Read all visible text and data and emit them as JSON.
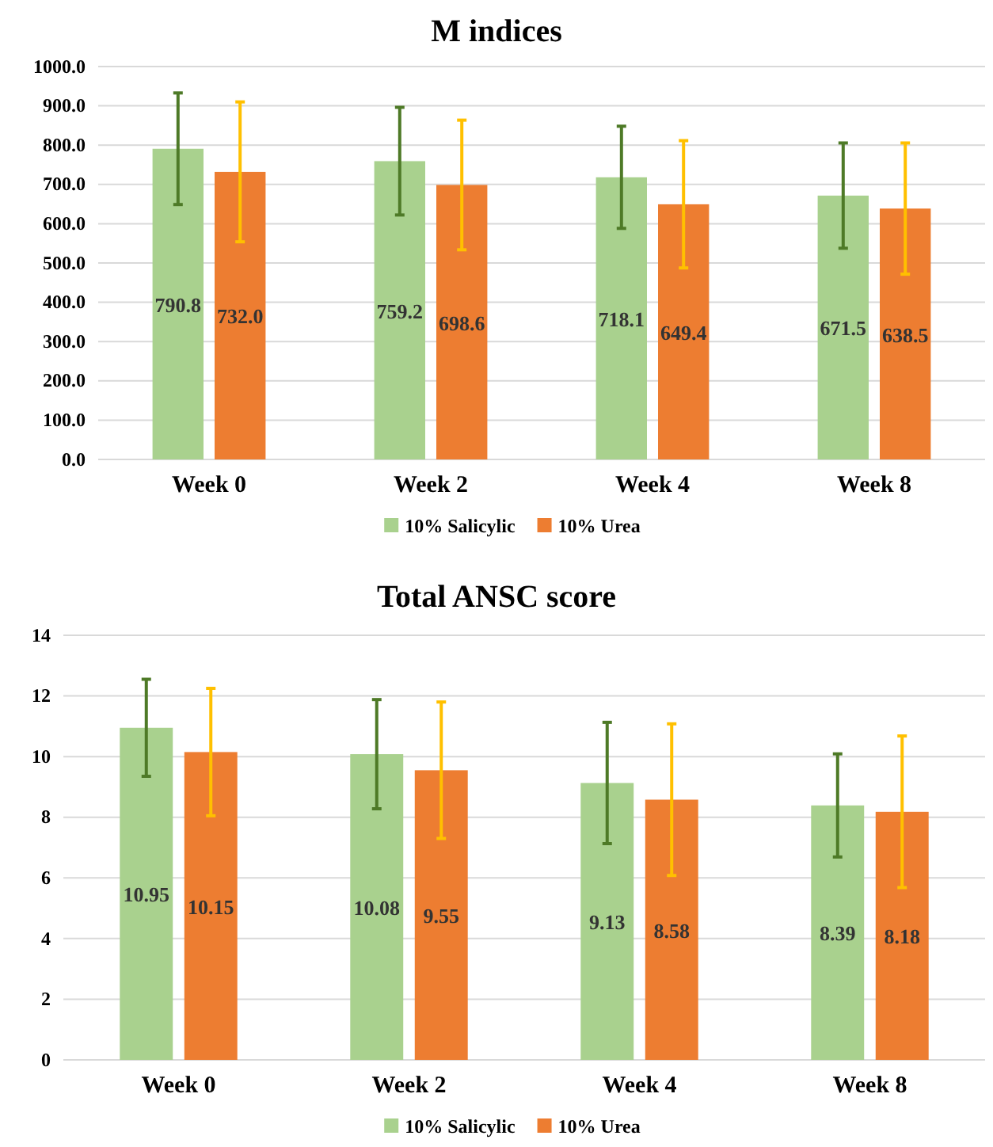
{
  "chart_data": [
    {
      "type": "bar",
      "title": "M indices",
      "categories": [
        "Week 0",
        "Week 2",
        "Week 4",
        "Week 8"
      ],
      "series": [
        {
          "name": "10% Salicylic",
          "color": "#a9d18e",
          "values": [
            790.8,
            759.2,
            718.1,
            671.5
          ],
          "errors": [
            142,
            137,
            130,
            134
          ],
          "value_labels": [
            "790.8",
            "759.2",
            "718.1",
            "671.5"
          ]
        },
        {
          "name": "10% Urea",
          "color": "#ed7d31",
          "values": [
            732.0,
            698.6,
            649.4,
            638.5
          ],
          "errors": [
            178,
            165,
            162,
            167
          ],
          "value_labels": [
            "732.0",
            "698.6",
            "649.4",
            "638.5"
          ]
        }
      ],
      "ylim": [
        0,
        1000
      ],
      "yticks": [
        {
          "value": 0,
          "label": "0.0"
        },
        {
          "value": 100,
          "label": "100.0"
        },
        {
          "value": 200,
          "label": "200.0"
        },
        {
          "value": 300,
          "label": "300.0"
        },
        {
          "value": 400,
          "label": "400.0"
        },
        {
          "value": 500,
          "label": "500.0"
        },
        {
          "value": 600,
          "label": "600.0"
        },
        {
          "value": 700,
          "label": "700.0"
        },
        {
          "value": 800,
          "label": "800.0"
        },
        {
          "value": 900,
          "label": "900.0"
        },
        {
          "value": 1000,
          "label": "1000.0"
        }
      ],
      "grid": "y",
      "legend": "bottom"
    },
    {
      "type": "bar",
      "title": "Total ANSC score",
      "categories": [
        "Week 0",
        "Week 2",
        "Week 4",
        "Week 8"
      ],
      "series": [
        {
          "name": "10% Salicylic",
          "color": "#a9d18e",
          "values": [
            10.95,
            10.08,
            9.13,
            8.39
          ],
          "errors": [
            1.6,
            1.8,
            2.0,
            1.7
          ],
          "value_labels": [
            "10.95",
            "10.08",
            "9.13",
            "8.39"
          ]
        },
        {
          "name": "10% Urea",
          "color": "#ed7d31",
          "values": [
            10.15,
            9.55,
            8.58,
            8.18
          ],
          "errors": [
            2.1,
            2.25,
            2.5,
            2.5
          ],
          "value_labels": [
            "10.15",
            "9.55",
            "8.58",
            "8.18"
          ]
        }
      ],
      "ylim": [
        0,
        14
      ],
      "yticks": [
        0,
        2,
        4,
        6,
        8,
        10,
        12,
        14
      ],
      "grid": "y",
      "legend": "bottom"
    }
  ]
}
